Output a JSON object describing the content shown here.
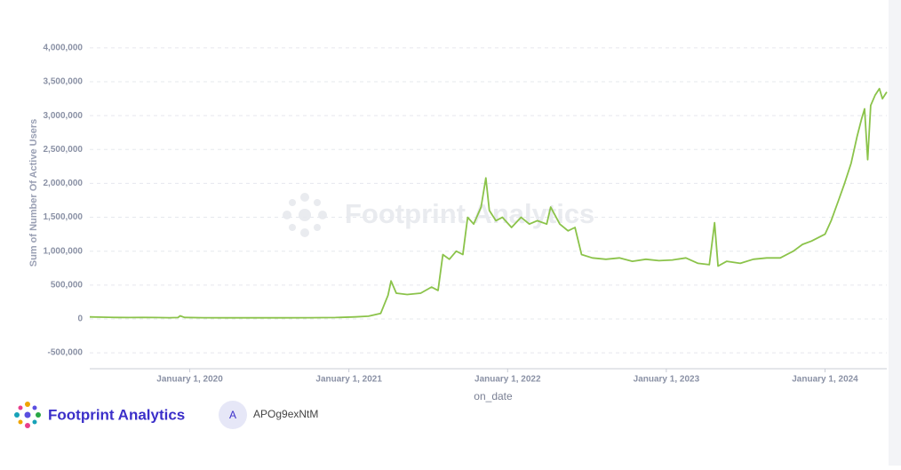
{
  "chart_data": {
    "type": "line",
    "y_label": "Sum of Number Of Active Users",
    "x_label": "on_date",
    "watermark": "Footprint Analytics",
    "color": "#8bc34a",
    "grid": true,
    "xlim": [
      "2019-05-16",
      "2024-05-22"
    ],
    "xticks": [
      {
        "value": "2020-01-01",
        "label": "January 1, 2020"
      },
      {
        "value": "2021-01-01",
        "label": "January 1, 2021"
      },
      {
        "value": "2022-01-01",
        "label": "January 1, 2022"
      },
      {
        "value": "2023-01-01",
        "label": "January 1, 2023"
      },
      {
        "value": "2024-01-01",
        "label": "January 1, 2024"
      }
    ],
    "ylim": [
      -735000,
      4130000
    ],
    "yticks": [
      {
        "value": -500000,
        "label": "-500,000"
      },
      0,
      {
        "value": 500000,
        "label": "500,000"
      },
      {
        "value": 1000000,
        "label": "1,000,000"
      },
      {
        "value": 1500000,
        "label": "1,500,000"
      },
      {
        "value": 2000000,
        "label": "2,000,000"
      },
      {
        "value": 2500000,
        "label": "2,500,000"
      },
      {
        "value": 3000000,
        "label": "3,000,000"
      },
      {
        "value": 3500000,
        "label": "3,500,000"
      },
      {
        "value": 4000000,
        "label": "4,000,000"
      }
    ],
    "x": [
      "2019-05-16",
      "2019-06-15",
      "2019-07-15",
      "2019-08-15",
      "2019-09-15",
      "2019-10-15",
      "2019-11-15",
      "2019-12-05",
      "2019-12-10",
      "2019-12-20",
      "2020-02-01",
      "2020-04-01",
      "2020-06-01",
      "2020-08-01",
      "2020-10-01",
      "2020-12-01",
      "2021-01-15",
      "2021-02-15",
      "2021-03-15",
      "2021-04-01",
      "2021-04-08",
      "2021-04-20",
      "2021-05-15",
      "2021-06-15",
      "2021-07-10",
      "2021-07-25",
      "2021-08-05",
      "2021-08-20",
      "2021-09-05",
      "2021-09-20",
      "2021-10-01",
      "2021-10-15",
      "2021-11-01",
      "2021-11-12",
      "2021-11-20",
      "2021-12-05",
      "2021-12-20",
      "2022-01-10",
      "2022-02-01",
      "2022-02-20",
      "2022-03-10",
      "2022-04-01",
      "2022-04-10",
      "2022-05-01",
      "2022-05-20",
      "2022-06-05",
      "2022-06-20",
      "2022-07-15",
      "2022-08-15",
      "2022-09-15",
      "2022-10-15",
      "2022-11-15",
      "2022-12-15",
      "2023-01-15",
      "2023-02-15",
      "2023-03-15",
      "2023-04-10",
      "2023-04-22",
      "2023-04-30",
      "2023-05-20",
      "2023-06-20",
      "2023-07-20",
      "2023-08-20",
      "2023-09-20",
      "2023-10-20",
      "2023-11-10",
      "2023-12-01",
      "2024-01-01",
      "2024-01-15",
      "2024-02-01",
      "2024-02-15",
      "2024-03-01",
      "2024-03-15",
      "2024-03-25",
      "2024-04-01",
      "2024-04-08",
      "2024-04-15",
      "2024-04-25",
      "2024-05-05",
      "2024-05-12",
      "2024-05-22"
    ],
    "values": [
      30000,
      25000,
      22000,
      20000,
      22000,
      20000,
      18000,
      20000,
      45000,
      22000,
      18000,
      17000,
      16000,
      17000,
      18000,
      20000,
      30000,
      40000,
      80000,
      350000,
      560000,
      380000,
      360000,
      380000,
      470000,
      420000,
      950000,
      880000,
      1000000,
      950000,
      1500000,
      1400000,
      1650000,
      2080000,
      1600000,
      1450000,
      1500000,
      1350000,
      1500000,
      1400000,
      1450000,
      1400000,
      1650000,
      1400000,
      1300000,
      1350000,
      950000,
      900000,
      880000,
      900000,
      850000,
      880000,
      860000,
      870000,
      900000,
      820000,
      800000,
      1420000,
      780000,
      850000,
      820000,
      880000,
      900000,
      900000,
      1000000,
      1100000,
      1150000,
      1250000,
      1450000,
      1750000,
      2000000,
      2300000,
      2700000,
      2950000,
      3100000,
      2350000,
      3150000,
      3300000,
      3400000,
      3250000,
      3350000
    ]
  },
  "footer": {
    "brand": "Footprint Analytics",
    "avatar": "A",
    "user": "APOg9exNtM"
  }
}
